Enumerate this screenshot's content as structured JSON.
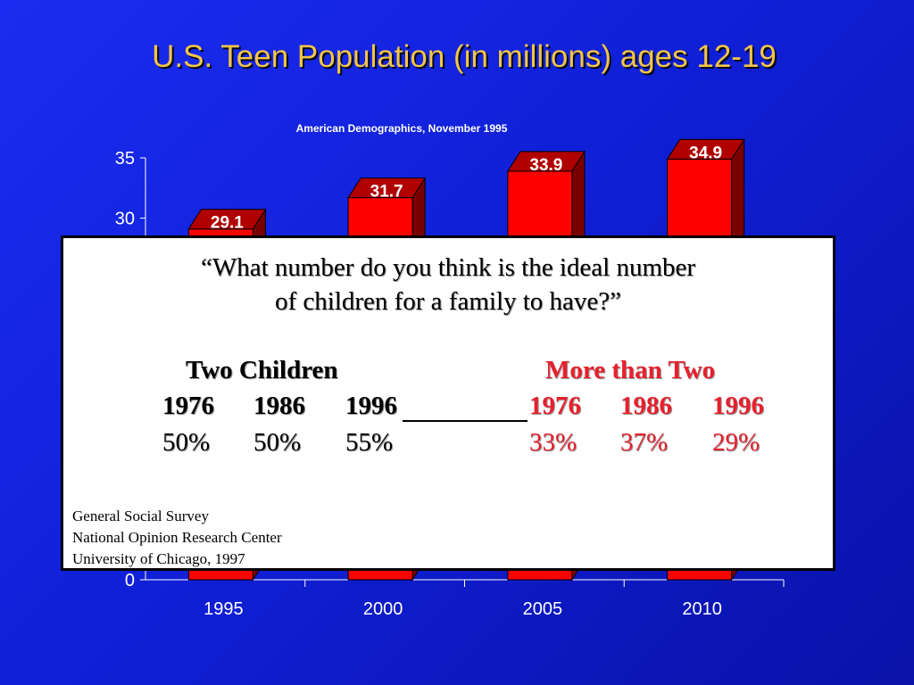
{
  "slide": {
    "title": "U.S. Teen Population (in millions) ages 12-19",
    "subtitle": "American Demographics, November 1995"
  },
  "colors": {
    "background": "#1a2ae8",
    "title": "#f2c44a",
    "bar_front": "#ff0000",
    "bar_top": "#b00000",
    "bar_side": "#7a0000",
    "more_than_two": "#e8202c"
  },
  "chart_data": {
    "type": "bar",
    "categories": [
      "1995",
      "2000",
      "2005",
      "2010"
    ],
    "values": [
      29.1,
      31.7,
      33.9,
      34.9
    ],
    "data_labels": [
      "29.1",
      "31.7",
      "33.9",
      "34.9"
    ],
    "title": "",
    "xlabel": "",
    "ylabel": "",
    "ylim": [
      0,
      35
    ],
    "y_ticks_visible": [
      "0",
      "30",
      "35"
    ],
    "grid": false,
    "style": "3d"
  },
  "overlay": {
    "question_line1": "“What number do you think is the ideal number",
    "question_line2": "of children for a family to have?”",
    "two_children": {
      "heading": "Two Children",
      "years": [
        "1976",
        "1986",
        "1996"
      ],
      "percentages": [
        "50%",
        "50%",
        "55%"
      ]
    },
    "more_than_two": {
      "heading": "More than Two",
      "years": [
        "1976",
        "1986",
        "1996"
      ],
      "percentages": [
        "33%",
        "37%",
        "29%"
      ]
    },
    "source": [
      "General Social Survey",
      "National Opinion Research Center",
      "University of Chicago, 1997"
    ]
  }
}
